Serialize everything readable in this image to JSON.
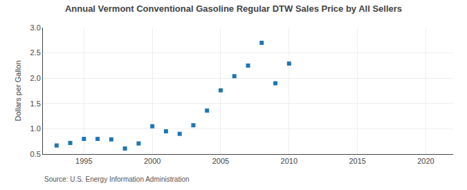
{
  "chart_data": {
    "type": "scatter",
    "title": "Annual Vermont Conventional Gasoline Regular DTW Sales Price by All Sellers",
    "ylabel": "Dollars per Gallon",
    "annotations": [
      "Source: U.S. Energy Information Administration"
    ],
    "x": [
      1993,
      1994,
      1995,
      1996,
      1997,
      1998,
      1999,
      2000,
      2001,
      2002,
      2003,
      2004,
      2005,
      2006,
      2007,
      2008,
      2009,
      2010
    ],
    "values": [
      0.67,
      0.72,
      0.8,
      0.8,
      0.79,
      0.61,
      0.71,
      1.05,
      0.95,
      0.9,
      1.07,
      1.36,
      1.76,
      2.04,
      2.25,
      2.7,
      1.9,
      2.29
    ],
    "xlim": [
      1992,
      2022
    ],
    "xticks": [
      1995,
      2000,
      2005,
      2010,
      2015,
      2020
    ],
    "ylim": [
      0.5,
      3.0
    ],
    "yticks": [
      0.5,
      {
        "value": 1.0,
        "label": "1.0"
      },
      1.5,
      {
        "value": 2.0,
        "label": "2.0"
      },
      2.5,
      {
        "value": 3.0,
        "label": "3.0"
      }
    ],
    "grid": true,
    "marker": "square"
  }
}
